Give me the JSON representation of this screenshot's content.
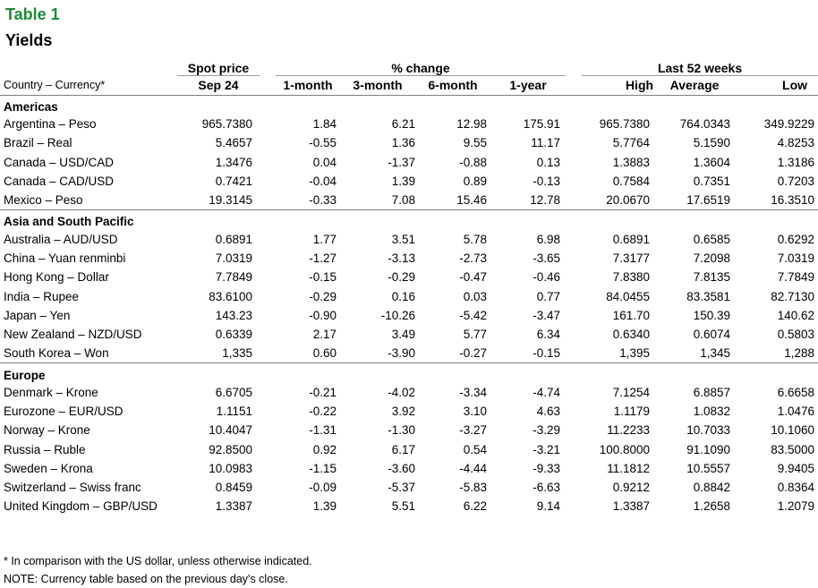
{
  "header": {
    "table_label": "Table 1",
    "title": "Yields"
  },
  "columns": {
    "spot_group": "Spot price",
    "change_group": "% change",
    "last52_group": "Last 52 weeks",
    "country_currency": "Country – Currency*",
    "spot_date": "Sep 24",
    "m1": "1-month",
    "m3": "3-month",
    "m6": "6-month",
    "y1": "1-year",
    "high": "High",
    "average": "Average",
    "low": "Low"
  },
  "colors": {
    "label_green": "#1f8a3a",
    "rule_gray": "#7f7f7f"
  },
  "regions": [
    {
      "name": "Americas",
      "rows": [
        [
          "Argentina – Peso",
          "965.7380",
          "1.84",
          "6.21",
          "12.98",
          "175.91",
          "965.7380",
          "764.0343",
          "349.9229"
        ],
        [
          "Brazil – Real",
          "5.4657",
          "-0.55",
          "1.36",
          "9.55",
          "11.17",
          "5.7764",
          "5.1590",
          "4.8253"
        ],
        [
          "Canada – USD/CAD",
          "1.3476",
          "0.04",
          "-1.37",
          "-0.88",
          "0.13",
          "1.3883",
          "1.3604",
          "1.3186"
        ],
        [
          "Canada – CAD/USD",
          "0.7421",
          "-0.04",
          "1.39",
          "0.89",
          "-0.13",
          "0.7584",
          "0.7351",
          "0.7203"
        ],
        [
          "Mexico – Peso",
          "19.3145",
          "-0.33",
          "7.08",
          "15.46",
          "12.78",
          "20.0670",
          "17.6519",
          "16.3510"
        ]
      ]
    },
    {
      "name": "Asia and South Pacific",
      "rows": [
        [
          "Australia – AUD/USD",
          "0.6891",
          "1.77",
          "3.51",
          "5.78",
          "6.98",
          "0.6891",
          "0.6585",
          "0.6292"
        ],
        [
          "China – Yuan renminbi",
          "7.0319",
          "-1.27",
          "-3.13",
          "-2.73",
          "-3.65",
          "7.3177",
          "7.2098",
          "7.0319"
        ],
        [
          "Hong Kong – Dollar",
          "7.7849",
          "-0.15",
          "-0.29",
          "-0.47",
          "-0.46",
          "7.8380",
          "7.8135",
          "7.7849"
        ],
        [
          "India – Rupee",
          "83.6100",
          "-0.29",
          "0.16",
          "0.03",
          "0.77",
          "84.0455",
          "83.3581",
          "82.7130"
        ],
        [
          "Japan – Yen",
          "143.23",
          "-0.90",
          "-10.26",
          "-5.42",
          "-3.47",
          "161.70",
          "150.39",
          "140.62"
        ],
        [
          "New Zealand – NZD/USD",
          "0.6339",
          "2.17",
          "3.49",
          "5.77",
          "6.34",
          "0.6340",
          "0.6074",
          "0.5803"
        ],
        [
          "South Korea – Won",
          "1,335",
          "0.60",
          "-3.90",
          "-0.27",
          "-0.15",
          "1,395",
          "1,345",
          "1,288"
        ]
      ]
    },
    {
      "name": "Europe",
      "rows": [
        [
          "Denmark – Krone",
          "6.6705",
          "-0.21",
          "-4.02",
          "-3.34",
          "-4.74",
          "7.1254",
          "6.8857",
          "6.6658"
        ],
        [
          "Eurozone – EUR/USD",
          "1.1151",
          "-0.22",
          "3.92",
          "3.10",
          "4.63",
          "1.1179",
          "1.0832",
          "1.0476"
        ],
        [
          "Norway – Krone",
          "10.4047",
          "-1.31",
          "-1.30",
          "-3.27",
          "-3.29",
          "11.2233",
          "10.7033",
          "10.1060"
        ],
        [
          "Russia – Ruble",
          "92.8500",
          "0.92",
          "6.17",
          "0.54",
          "-3.21",
          "100.8000",
          "91.1090",
          "83.5000"
        ],
        [
          "Sweden – Krona",
          "10.0983",
          "-1.15",
          "-3.60",
          "-4.44",
          "-9.33",
          "11.1812",
          "10.5557",
          "9.9405"
        ],
        [
          "Switzerland – Swiss franc",
          "0.8459",
          "-0.09",
          "-5.37",
          "-5.83",
          "-6.63",
          "0.9212",
          "0.8842",
          "0.8364"
        ],
        [
          "United Kingdom – GBP/USD",
          "1.3387",
          "1.39",
          "5.51",
          "6.22",
          "9.14",
          "1.3387",
          "1.2658",
          "1.2079"
        ]
      ]
    }
  ],
  "notes": [
    "* In comparison with the US dollar, unless otherwise indicated.",
    "NOTE: Currency table based on the previous day's close."
  ]
}
